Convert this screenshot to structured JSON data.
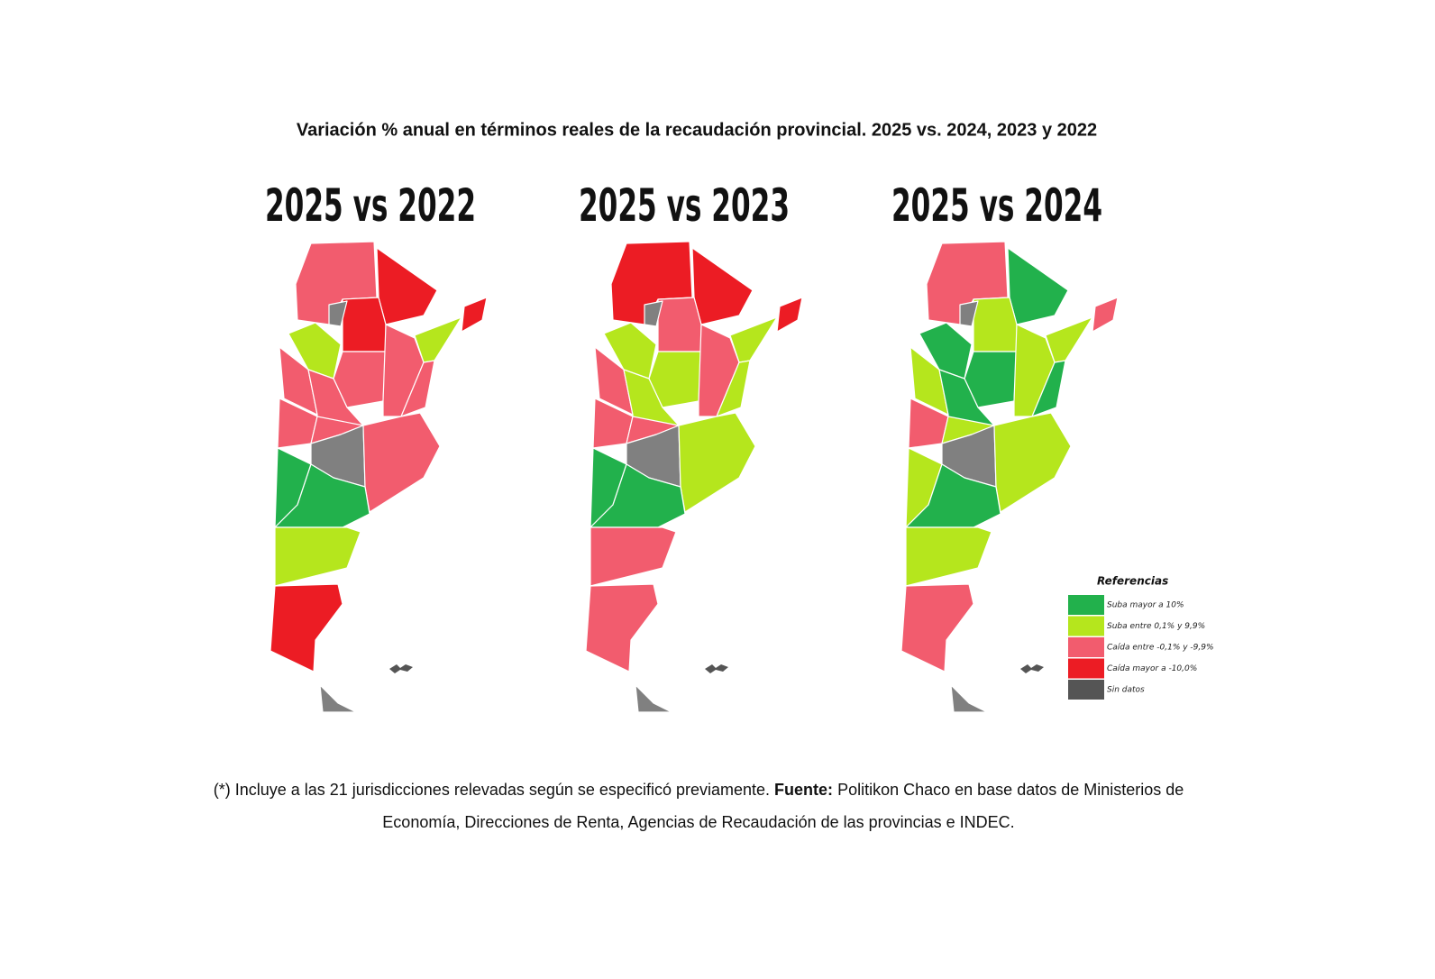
{
  "title": "Variación % anual en términos reales de la recaudación provincial. 2025 vs. 2024, 2023 y 2022",
  "maps": [
    {
      "title": "2025 vs 2022"
    },
    {
      "title": "2025 vs 2023"
    },
    {
      "title": "2025 vs 2024"
    }
  ],
  "legend": {
    "title": "Referencias",
    "items": [
      {
        "label": "Suba mayor a 10%",
        "color": "#22b14c"
      },
      {
        "label": "Suba entre 0,1% y 9,9%",
        "color": "#b5e61d"
      },
      {
        "label": "Caída entre -0,1% y -9,9%",
        "color": "#f25c6e"
      },
      {
        "label": "Caída mayor a -10,0%",
        "color": "#ec1c24"
      },
      {
        "label": "Sin datos",
        "color": "#555555"
      }
    ]
  },
  "footnote": {
    "before": "(*) Incluye a las 21 jurisdicciones relevadas según se especificó previamente.",
    "source_label": "Fuente:",
    "after": "Politikon Chaco en base datos de Ministerios de Economía, Direcciones de Renta, Agencias de Recaudación de las provincias e INDEC."
  }
}
